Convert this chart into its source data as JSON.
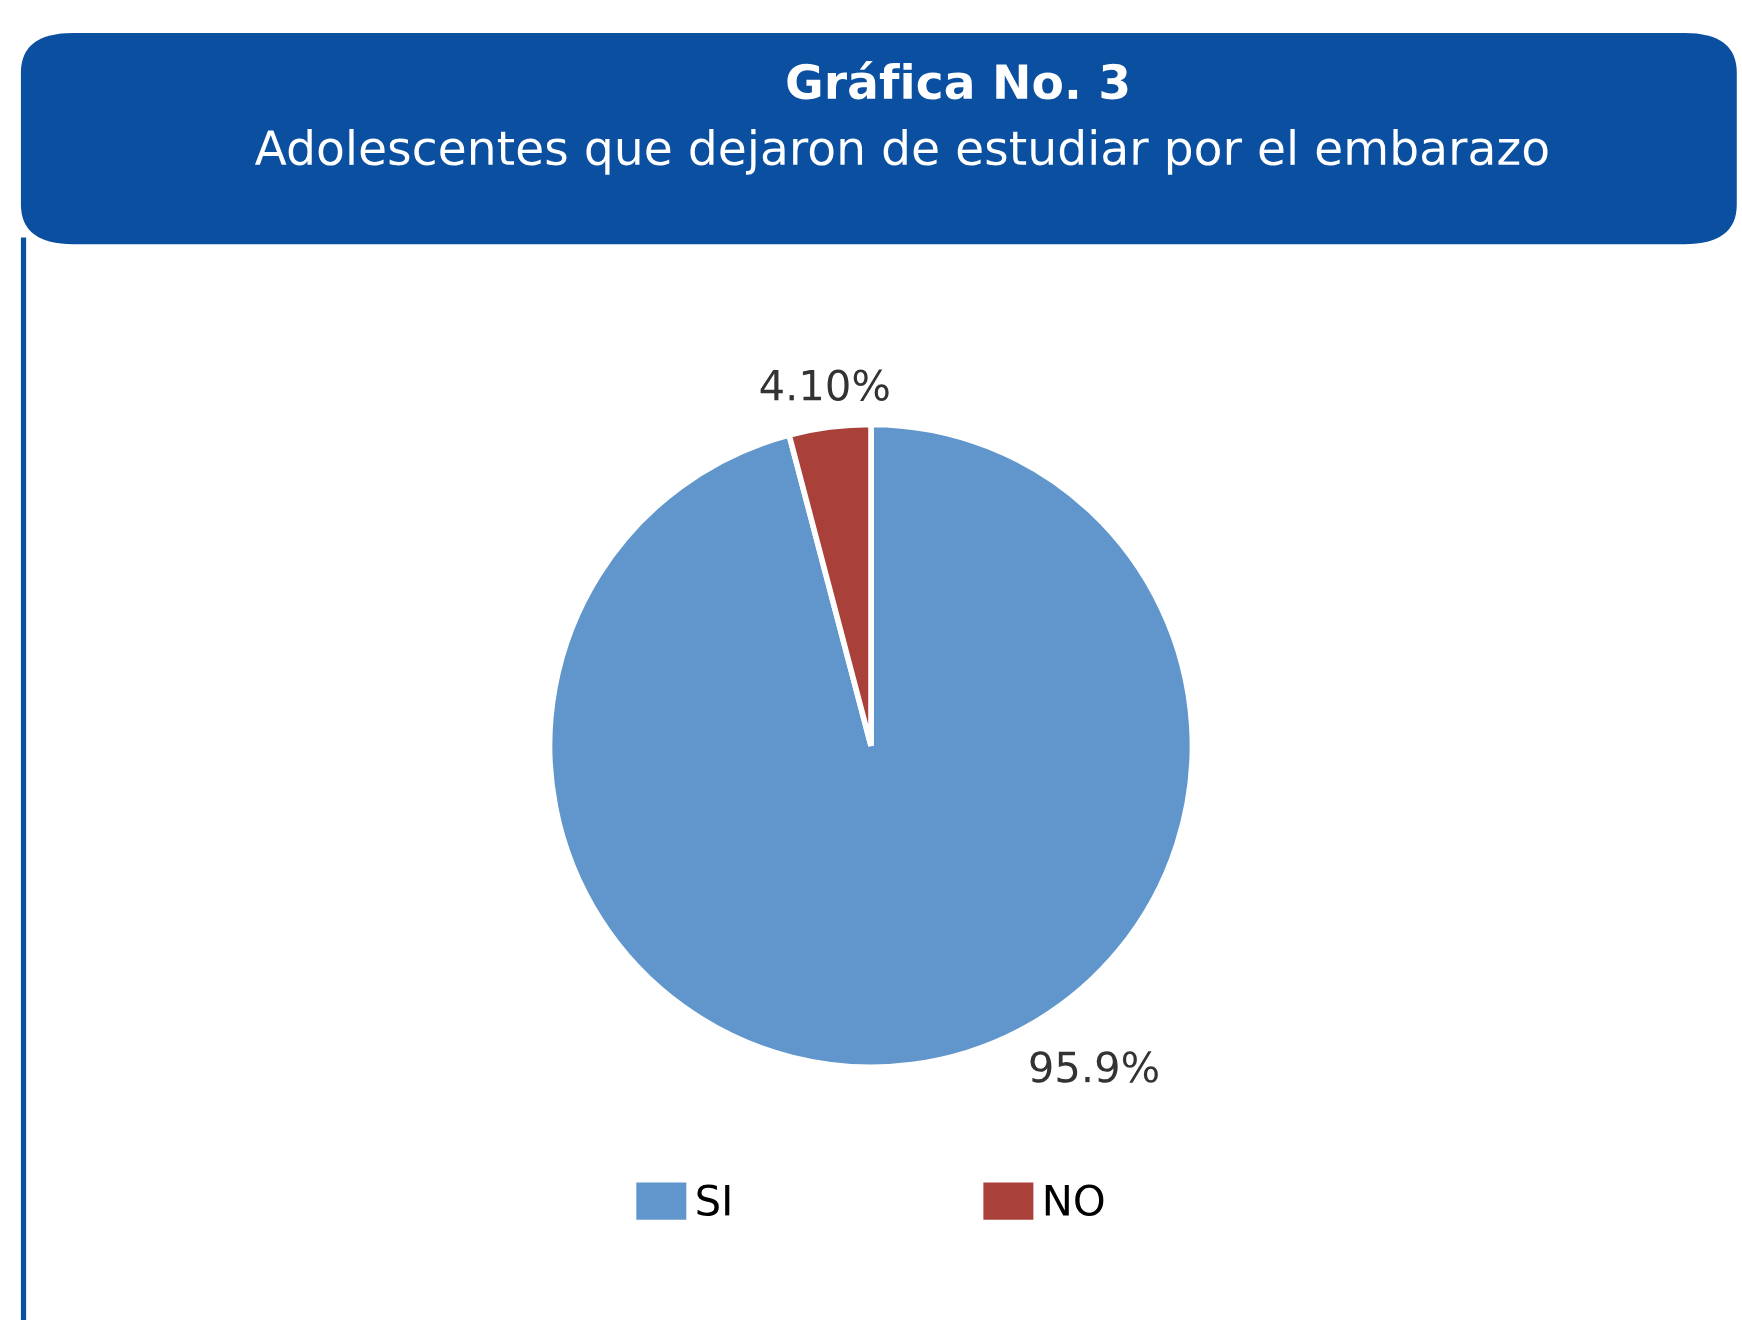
{
  "chart_data": {
    "type": "pie",
    "title": "Gráfica No. 3",
    "subtitle": "Adolescentes que dejaron de estudiar por el embarazo",
    "categories": [
      "SI",
      "NO"
    ],
    "values": [
      95.9,
      4.1
    ],
    "colors": [
      "#6096cb",
      "#a9403a"
    ],
    "value_labels": [
      "95.9%",
      "4.10%"
    ],
    "legend": "bottom"
  }
}
